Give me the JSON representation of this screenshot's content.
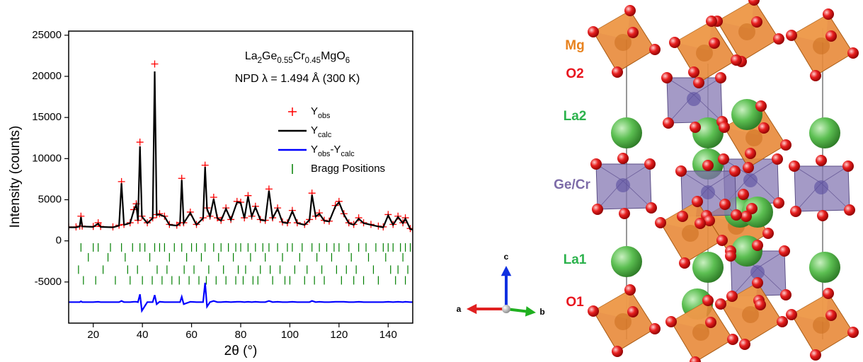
{
  "chart_data": {
    "type": "line",
    "annotations": [
      "La2Ge0.55Cr0.45MgO6",
      "NPD λ = 1.494 Å (300 K)"
    ],
    "xlabel": "2θ (°)",
    "ylabel": "Intensity (counts)",
    "xlim": [
      10,
      150
    ],
    "ylim": [
      -10000,
      25500
    ],
    "xticks": [
      20,
      40,
      60,
      80,
      100,
      120,
      140
    ],
    "yticks": [
      -5000,
      0,
      5000,
      10000,
      15000,
      20000,
      25000
    ],
    "x": [
      10,
      13,
      14.5,
      15,
      15.5,
      20,
      22,
      23,
      28,
      30.5,
      31.5,
      32.5,
      35,
      36.5,
      37.5,
      38.2,
      39,
      39.8,
      42,
      44.2,
      45,
      45.8,
      47,
      49,
      51,
      54,
      55.3,
      56,
      56.8,
      59.5,
      62,
      64.7,
      65.5,
      66.3,
      67.5,
      69,
      70.5,
      72,
      74,
      76,
      78.5,
      80,
      81.5,
      83,
      84.5,
      86,
      88,
      90,
      91.5,
      93,
      95,
      97,
      99,
      101,
      103,
      106,
      108,
      109,
      110.5,
      112,
      114,
      116,
      118.5,
      120,
      122,
      124,
      126,
      128,
      130,
      133,
      136,
      138,
      140,
      142,
      144,
      146,
      147,
      149,
      150
    ],
    "series": [
      {
        "name": "Yobs",
        "color": "#ff0000",
        "marker": "plus",
        "values": [
          1700,
          1700,
          1800,
          3000,
          1800,
          1750,
          2200,
          1750,
          1700,
          1900,
          7200,
          2000,
          2200,
          3800,
          4500,
          2500,
          12000,
          3000,
          2200,
          2800,
          21500,
          3200,
          3300,
          3000,
          2000,
          1900,
          2200,
          7600,
          2200,
          3500,
          2000,
          2800,
          9200,
          4000,
          3000,
          5300,
          2800,
          2500,
          4000,
          2600,
          4800,
          4700,
          2800,
          5500,
          3000,
          4200,
          2600,
          2500,
          6300,
          2800,
          4000,
          2300,
          2200,
          3700,
          2200,
          2000,
          2600,
          5800,
          3000,
          3400,
          2500,
          2400,
          4300,
          4800,
          3300,
          2200,
          2000,
          2800,
          2200,
          2000,
          1800,
          1700,
          3200,
          2000,
          3000,
          2200,
          2800,
          1500,
          1400
        ]
      },
      {
        "name": "Ycalc",
        "color": "#000000",
        "marker": "line",
        "values": [
          1650,
          1650,
          1750,
          2900,
          1750,
          1700,
          2100,
          1700,
          1650,
          1850,
          7000,
          1950,
          2150,
          3700,
          4400,
          2450,
          11500,
          2950,
          2150,
          2750,
          20600,
          3150,
          3200,
          2950,
          1950,
          1850,
          2150,
          7400,
          2150,
          3400,
          1950,
          2750,
          9000,
          3900,
          2950,
          5100,
          2750,
          2450,
          3900,
          2550,
          4700,
          4600,
          2750,
          5400,
          2950,
          4100,
          2550,
          2450,
          6100,
          2750,
          3900,
          2250,
          2150,
          3600,
          2150,
          1950,
          2550,
          5600,
          2950,
          3300,
          2450,
          2350,
          4200,
          4700,
          3200,
          2150,
          1950,
          2700,
          2150,
          1950,
          1750,
          1650,
          3100,
          1950,
          2900,
          2150,
          2700,
          1450,
          1350
        ]
      },
      {
        "name": "Yobs-Ycalc",
        "color": "#0000ff",
        "marker": "line",
        "values": [
          -7450,
          -7450,
          -7450,
          -7350,
          -7450,
          -7450,
          -7400,
          -7450,
          -7450,
          -7450,
          -7300,
          -7450,
          -7450,
          -7400,
          -7400,
          -7450,
          -6500,
          -8500,
          -7450,
          -7450,
          -6600,
          -7700,
          -7400,
          -7450,
          -7450,
          -7450,
          -7450,
          -6800,
          -7700,
          -7400,
          -7450,
          -7450,
          -5100,
          -8000,
          -7450,
          -7300,
          -7450,
          -7450,
          -7400,
          -7450,
          -7400,
          -7400,
          -7450,
          -7400,
          -7450,
          -7400,
          -7450,
          -7450,
          -7300,
          -7450,
          -7400,
          -7450,
          -7450,
          -7400,
          -7450,
          -7450,
          -7450,
          -7300,
          -7450,
          -7400,
          -7450,
          -7450,
          -7400,
          -7400,
          -7400,
          -7450,
          -7450,
          -7400,
          -7450,
          -7450,
          -7450,
          -7450,
          -7400,
          -7450,
          -7400,
          -7450,
          -7400,
          -7450,
          -7450
        ]
      }
    ],
    "bragg": {
      "name": "Bragg Positions",
      "color": "#007f00",
      "rows": [
        {
          "y": -800,
          "x": [
            15,
            20,
            22,
            27,
            31.5,
            36,
            39,
            41,
            45,
            47,
            49,
            53,
            56,
            60,
            62,
            65.5,
            69,
            72,
            75,
            78,
            80,
            83,
            86,
            89,
            91.5,
            95,
            99,
            101,
            105,
            109,
            112,
            115,
            118,
            120,
            124,
            128,
            131,
            135,
            138,
            140,
            142,
            145,
            147,
            149
          ]
        },
        {
          "y": -2000,
          "x": [
            18,
            26,
            33,
            43,
            51,
            58,
            64,
            71,
            77,
            84,
            90,
            97,
            104,
            111,
            117,
            125,
            132,
            139,
            146
          ]
        },
        {
          "y": -3500,
          "x": [
            14,
            24,
            34,
            38,
            46,
            50,
            57,
            61,
            67,
            73,
            79,
            82,
            88,
            92,
            96,
            102,
            107,
            113,
            119,
            123,
            127,
            134,
            141,
            144,
            148
          ]
        },
        {
          "y": -4800,
          "x": [
            16,
            21,
            29,
            35,
            40,
            44,
            48,
            52,
            55,
            59,
            63,
            66,
            70,
            74,
            78,
            81,
            85,
            87,
            93,
            98,
            100,
            106,
            110,
            114,
            121,
            126,
            130,
            136,
            143,
            147
          ]
        }
      ]
    }
  },
  "structure": {
    "labels": [
      {
        "text": "Mg",
        "color": "#e8821e"
      },
      {
        "text": "O2",
        "color": "#e8141e"
      },
      {
        "text": "La2",
        "color": "#2bb24c"
      },
      {
        "text": "Ge/Cr",
        "color": "#7d6ba8"
      },
      {
        "text": "La1",
        "color": "#2bb24c"
      },
      {
        "text": "O1",
        "color": "#e8141e"
      }
    ],
    "axes": [
      "a",
      "b",
      "c"
    ]
  }
}
